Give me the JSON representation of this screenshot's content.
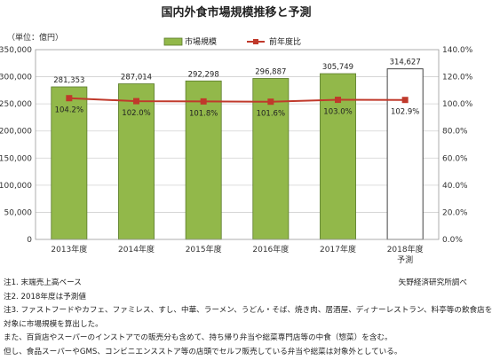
{
  "chart_data": {
    "type": "bar",
    "title": "国内外食市場規模推移と予測",
    "unit_label": "（単位：億円）",
    "categories": [
      "2013年度",
      "2014年度",
      "2015年度",
      "2016年度",
      "2017年度",
      "2018年度"
    ],
    "forecast_label": "予測",
    "series": [
      {
        "name": "市場規模",
        "type": "bar",
        "axis": "left",
        "color": "#92b84a",
        "values": [
          281353,
          287014,
          292298,
          296887,
          305749,
          314627
        ],
        "labels": [
          "281,353",
          "287,014",
          "292,298",
          "296,887",
          "305,749",
          "314,627"
        ],
        "forecast_index": 5
      },
      {
        "name": "前年度比",
        "type": "line",
        "axis": "right",
        "color": "#c0392b",
        "values": [
          104.2,
          102.0,
          101.8,
          101.6,
          103.0,
          102.9
        ],
        "labels": [
          "104.2%",
          "102.0%",
          "101.8%",
          "101.6%",
          "103.0%",
          "102.9%"
        ]
      }
    ],
    "y_left": {
      "range": [
        0,
        350000
      ],
      "ticks": [
        "0",
        "50,000",
        "100,000",
        "150,000",
        "200,000",
        "250,000",
        "300,000",
        "350,000"
      ]
    },
    "y_right": {
      "range": [
        0,
        140
      ],
      "ticks": [
        "0.0%",
        "20.0%",
        "40.0%",
        "60.0%",
        "80.0%",
        "100.0%",
        "120.0%",
        "140.0%"
      ]
    },
    "grid": true,
    "legend_position": "top-center"
  },
  "notes": [
    "注1. 末端売上高ベース",
    "注2. 2018年度は予測値",
    "注3. ファストフードやカフェ、ファミレス、すし、中華、ラーメン、うどん・そば、焼き肉、居酒屋、ディナーレストラン、料亭等の飲食店を",
    "対象に市場規模を算出した。",
    "また、百貨店やスーパーのインストアでの販売分も含めて、持ち帰り弁当や総菜専門店等の中食（惣菜）を含む。",
    "但し、食品スーパーやGMS、コンビニエンスストア等の店頭でセルフ販売している弁当や総菜は対象外としている。"
  ],
  "source": "矢野経済研究所調べ"
}
